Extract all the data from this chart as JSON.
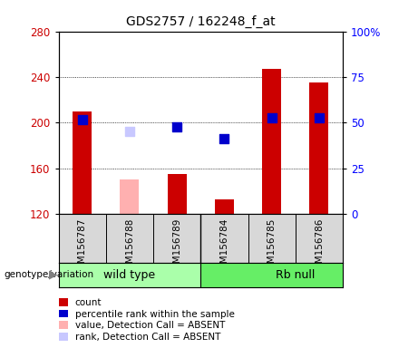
{
  "title": "GDS2757 / 162248_f_at",
  "samples": [
    "GSM156787",
    "GSM156788",
    "GSM156789",
    "GSM156784",
    "GSM156785",
    "GSM156786"
  ],
  "bar_values": [
    210,
    150,
    155,
    133,
    247,
    235
  ],
  "bar_absent": [
    false,
    true,
    false,
    false,
    false,
    false
  ],
  "rank_values": [
    203,
    192,
    196,
    186,
    204,
    204
  ],
  "rank_absent": [
    false,
    true,
    false,
    false,
    false,
    false
  ],
  "ylim_left": [
    120,
    280
  ],
  "ylim_right": [
    0,
    100
  ],
  "yticks_left": [
    120,
    160,
    200,
    240,
    280
  ],
  "yticks_right": [
    0,
    25,
    50,
    75,
    100
  ],
  "bar_color_present": "#cc0000",
  "bar_color_absent": "#ffb0b0",
  "rank_color_present": "#0000cc",
  "rank_color_absent": "#c8c8ff",
  "bar_width": 0.4,
  "rank_marker_size": 45,
  "group_colors": [
    "#aaffaa",
    "#66ee66"
  ],
  "grid_color": "#000000",
  "background_plot": "#ffffff",
  "background_xticklabel": "#d8d8d8",
  "legend_items": [
    {
      "label": "count",
      "color": "#cc0000"
    },
    {
      "label": "percentile rank within the sample",
      "color": "#0000cc"
    },
    {
      "label": "value, Detection Call = ABSENT",
      "color": "#ffb0b0"
    },
    {
      "label": "rank, Detection Call = ABSENT",
      "color": "#c8c8ff"
    }
  ],
  "group_labels": [
    "wild type",
    "Rb null"
  ],
  "group_boundaries": [
    0,
    3,
    6
  ]
}
